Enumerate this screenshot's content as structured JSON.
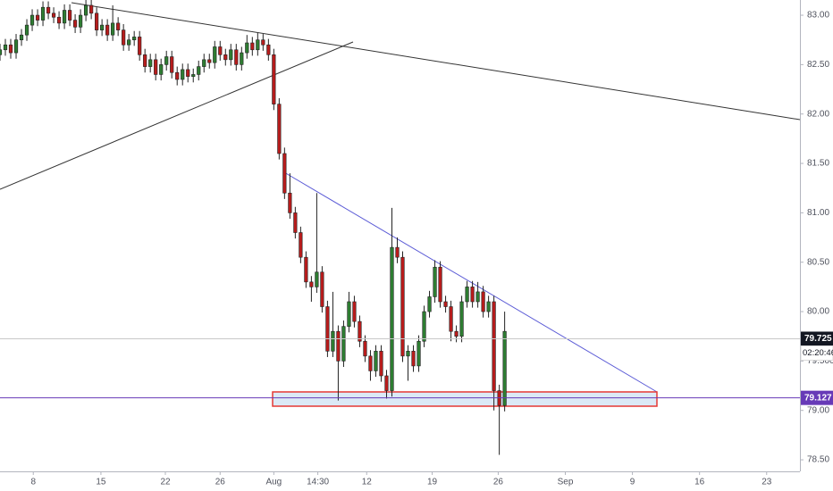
{
  "chart_data": {
    "type": "candlestick",
    "x": [
      0,
      1,
      2,
      3,
      4,
      5,
      6,
      7,
      8,
      9,
      10,
      11,
      12,
      13,
      14,
      15,
      16,
      17,
      18,
      19,
      20,
      21,
      22,
      23,
      24,
      25,
      26,
      27,
      28,
      29,
      30,
      31,
      32,
      33,
      34,
      35,
      36,
      37,
      38,
      39,
      40,
      41,
      42,
      43,
      44,
      45,
      46,
      47,
      48,
      49,
      50,
      51,
      52,
      53,
      54,
      55,
      56,
      57,
      58,
      59,
      60,
      61,
      62,
      63,
      64,
      65,
      66,
      67,
      68,
      69,
      70,
      71,
      72,
      73,
      74,
      75,
      76,
      77,
      78,
      79,
      80,
      81,
      82,
      83,
      84,
      85,
      86,
      87,
      88,
      89,
      90,
      91,
      92,
      93,
      94
    ],
    "open": [
      82.6,
      82.65,
      82.7,
      82.62,
      82.75,
      82.8,
      82.9,
      83.0,
      82.95,
      83.08,
      83.02,
      82.98,
      82.92,
      83.05,
      82.95,
      82.88,
      83.0,
      83.1,
      83.02,
      82.85,
      82.9,
      82.8,
      82.92,
      82.85,
      82.7,
      82.75,
      82.78,
      82.6,
      82.48,
      82.55,
      82.4,
      82.5,
      82.58,
      82.42,
      82.35,
      82.45,
      82.38,
      82.4,
      82.48,
      82.55,
      82.52,
      82.68,
      82.6,
      82.55,
      82.65,
      82.5,
      82.62,
      82.72,
      82.65,
      82.75,
      82.7,
      82.6,
      82.1,
      81.6,
      81.2,
      81.0,
      80.8,
      80.55,
      80.3,
      80.25,
      80.4,
      80.05,
      79.6,
      79.8,
      79.5,
      79.85,
      80.1,
      79.9,
      79.7,
      79.55,
      79.4,
      79.6,
      79.35,
      79.2,
      80.65,
      80.55,
      79.55,
      79.6,
      79.45,
      79.7,
      80.0,
      80.15,
      80.45,
      80.1,
      80.05,
      79.8,
      79.75,
      80.1,
      80.25,
      80.1,
      80.2,
      80.0,
      80.1,
      79.2,
      79.05
    ],
    "high": [
      82.71,
      82.76,
      82.76,
      82.81,
      82.86,
      82.96,
      83.06,
      83.06,
      83.14,
      83.14,
      83.08,
      83.04,
      83.11,
      83.11,
      83.01,
      83.06,
      83.18,
      83.16,
      83.08,
      82.96,
      82.96,
      83.1,
      82.98,
      82.91,
      82.81,
      82.84,
      82.84,
      82.66,
      82.61,
      82.61,
      82.56,
      82.64,
      82.64,
      82.48,
      82.51,
      82.51,
      82.46,
      82.54,
      82.61,
      82.61,
      82.74,
      82.74,
      82.66,
      82.71,
      82.71,
      82.68,
      82.8,
      82.78,
      82.82,
      82.81,
      82.76,
      82.66,
      82.16,
      81.66,
      81.4,
      81.06,
      80.86,
      80.61,
      80.36,
      81.2,
      80.46,
      80.11,
      80.2,
      79.86,
      79.91,
      80.2,
      80.16,
      79.96,
      79.76,
      79.61,
      79.66,
      79.66,
      79.41,
      81.05,
      80.75,
      80.61,
      79.66,
      79.66,
      79.76,
      80.06,
      80.21,
      80.52,
      80.51,
      80.16,
      80.11,
      79.86,
      80.16,
      80.31,
      80.31,
      80.3,
      80.26,
      80.16,
      80.16,
      79.26,
      80.0
    ],
    "low": [
      82.54,
      82.59,
      82.56,
      82.56,
      82.69,
      82.74,
      82.84,
      82.89,
      82.89,
      82.96,
      82.92,
      82.86,
      82.86,
      82.89,
      82.82,
      82.82,
      82.94,
      82.96,
      82.79,
      82.79,
      82.74,
      82.74,
      82.79,
      82.64,
      82.64,
      82.69,
      82.54,
      82.42,
      82.42,
      82.34,
      82.34,
      82.44,
      82.36,
      82.29,
      82.29,
      82.32,
      82.32,
      82.34,
      82.42,
      82.46,
      82.46,
      82.54,
      82.49,
      82.49,
      82.44,
      82.44,
      82.56,
      82.59,
      82.59,
      82.64,
      82.54,
      82.04,
      81.54,
      81.14,
      80.94,
      80.74,
      80.49,
      80.24,
      80.1,
      80.19,
      79.99,
      79.54,
      79.54,
      79.1,
      79.44,
      79.79,
      79.84,
      79.64,
      79.49,
      79.3,
      79.34,
      79.29,
      79.12,
      79.14,
      80.49,
      79.49,
      79.3,
      79.39,
      79.39,
      79.64,
      79.94,
      80.09,
      80.04,
      79.99,
      79.7,
      79.69,
      79.69,
      80.04,
      80.04,
      80.04,
      79.94,
      79.94,
      79.0,
      78.55,
      78.99
    ],
    "close": [
      82.65,
      82.7,
      82.62,
      82.75,
      82.8,
      82.9,
      83.0,
      82.95,
      83.08,
      83.02,
      82.98,
      82.92,
      83.05,
      82.95,
      82.88,
      83.0,
      83.1,
      83.02,
      82.85,
      82.9,
      82.8,
      82.92,
      82.85,
      82.7,
      82.75,
      82.78,
      82.6,
      82.48,
      82.55,
      82.4,
      82.5,
      82.58,
      82.42,
      82.35,
      82.45,
      82.38,
      82.4,
      82.48,
      82.55,
      82.52,
      82.68,
      82.6,
      82.55,
      82.65,
      82.5,
      82.62,
      82.72,
      82.65,
      82.75,
      82.7,
      82.6,
      82.1,
      81.6,
      81.2,
      81.0,
      80.8,
      80.55,
      80.3,
      80.25,
      80.4,
      80.05,
      79.6,
      79.8,
      79.5,
      79.85,
      80.1,
      79.9,
      79.7,
      79.55,
      79.4,
      79.6,
      79.35,
      79.2,
      80.65,
      80.55,
      79.55,
      79.6,
      79.45,
      79.7,
      80.0,
      80.15,
      80.45,
      80.1,
      80.05,
      79.8,
      79.75,
      80.1,
      80.25,
      80.1,
      80.2,
      80.0,
      80.1,
      79.2,
      79.05,
      79.8
    ],
    "up_color": "#2e7d32",
    "down_color": "#b71c1c",
    "xlim": [
      0,
      149
    ],
    "xticks": [
      {
        "value": 6.2,
        "label": "8"
      },
      {
        "value": 18.8,
        "label": "15"
      },
      {
        "value": 30.8,
        "label": "22"
      },
      {
        "value": 41,
        "label": "26"
      },
      {
        "value": 51,
        "label": "Aug"
      },
      {
        "value": 59.2,
        "label": "14:30"
      },
      {
        "value": 68.3,
        "label": "12"
      },
      {
        "value": 80.5,
        "label": "19"
      },
      {
        "value": 92.8,
        "label": "26"
      },
      {
        "value": 105.3,
        "label": "Sep"
      },
      {
        "value": 117.8,
        "label": "9"
      },
      {
        "value": 130.3,
        "label": "16"
      },
      {
        "value": 142.8,
        "label": "23"
      }
    ],
    "ylim": [
      78.383,
      83.154
    ],
    "yticks": [
      {
        "value": 78.5,
        "label": "78.50"
      },
      {
        "value": 79,
        "label": "79.00"
      },
      {
        "value": 79.5,
        "label": "79.500"
      },
      {
        "value": 80,
        "label": "80.00"
      },
      {
        "value": 80.5,
        "label": "80.50"
      },
      {
        "value": 81,
        "label": "81.00"
      },
      {
        "value": 81.5,
        "label": "81.50"
      },
      {
        "value": 82,
        "label": "82.00"
      },
      {
        "value": 82.5,
        "label": "82.50"
      },
      {
        "value": 83,
        "label": "83.00"
      }
    ],
    "last_price": 79.725,
    "last_price_color": "#131722",
    "countdown": "02:20:46",
    "alert_level": 79.127,
    "alert_color": "#673ab7"
  }
}
